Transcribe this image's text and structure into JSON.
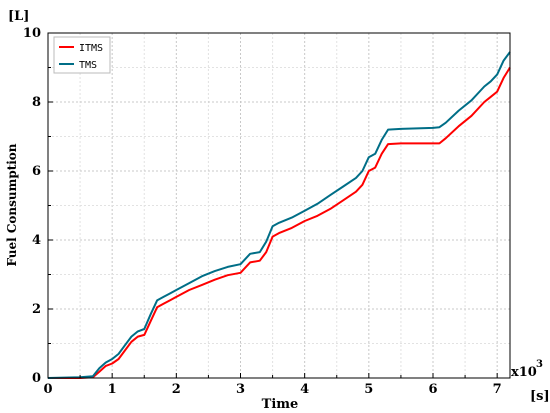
{
  "chart_data": {
    "type": "line",
    "title": "",
    "xlabel": "Time",
    "ylabel": "Fuel Consumption",
    "x_unit": "[s]",
    "y_unit": "[L]",
    "x_multiplier": "x10",
    "x_multiplier_exp": "3",
    "xlim": [
      0,
      7.2
    ],
    "ylim": [
      0,
      10
    ],
    "x_ticks": [
      "0",
      "1",
      "2",
      "3",
      "4",
      "5",
      "6",
      "7"
    ],
    "y_ticks": [
      "0",
      "2",
      "4",
      "6",
      "8",
      "10"
    ],
    "grid": true,
    "legend_position": "top-left",
    "series": [
      {
        "name": "ITMS",
        "color": "#ff0000",
        "points": [
          [
            0,
            0
          ],
          [
            0.5,
            0
          ],
          [
            0.7,
            0.02
          ],
          [
            0.8,
            0.18
          ],
          [
            0.9,
            0.35
          ],
          [
            1.0,
            0.42
          ],
          [
            1.1,
            0.55
          ],
          [
            1.2,
            0.8
          ],
          [
            1.3,
            1.05
          ],
          [
            1.4,
            1.2
          ],
          [
            1.5,
            1.25
          ],
          [
            1.6,
            1.65
          ],
          [
            1.7,
            2.05
          ],
          [
            1.8,
            2.15
          ],
          [
            1.9,
            2.25
          ],
          [
            2.0,
            2.35
          ],
          [
            2.2,
            2.55
          ],
          [
            2.4,
            2.7
          ],
          [
            2.6,
            2.85
          ],
          [
            2.8,
            2.98
          ],
          [
            3.0,
            3.05
          ],
          [
            3.15,
            3.35
          ],
          [
            3.3,
            3.4
          ],
          [
            3.4,
            3.65
          ],
          [
            3.5,
            4.1
          ],
          [
            3.6,
            4.2
          ],
          [
            3.8,
            4.35
          ],
          [
            4.0,
            4.55
          ],
          [
            4.2,
            4.7
          ],
          [
            4.4,
            4.9
          ],
          [
            4.6,
            5.15
          ],
          [
            4.8,
            5.4
          ],
          [
            4.9,
            5.6
          ],
          [
            5.0,
            6.0
          ],
          [
            5.1,
            6.1
          ],
          [
            5.2,
            6.5
          ],
          [
            5.3,
            6.78
          ],
          [
            5.5,
            6.8
          ],
          [
            6.0,
            6.8
          ],
          [
            6.1,
            6.8
          ],
          [
            6.2,
            6.95
          ],
          [
            6.4,
            7.3
          ],
          [
            6.6,
            7.6
          ],
          [
            6.8,
            8.0
          ],
          [
            6.9,
            8.15
          ],
          [
            7.0,
            8.3
          ],
          [
            7.1,
            8.7
          ],
          [
            7.2,
            9.0
          ]
        ]
      },
      {
        "name": "TMS",
        "color": "#006e87",
        "points": [
          [
            0,
            0
          ],
          [
            0.5,
            0.02
          ],
          [
            0.7,
            0.05
          ],
          [
            0.8,
            0.28
          ],
          [
            0.9,
            0.45
          ],
          [
            1.0,
            0.55
          ],
          [
            1.1,
            0.7
          ],
          [
            1.2,
            0.95
          ],
          [
            1.3,
            1.2
          ],
          [
            1.4,
            1.35
          ],
          [
            1.5,
            1.42
          ],
          [
            1.6,
            1.85
          ],
          [
            1.7,
            2.25
          ],
          [
            1.8,
            2.35
          ],
          [
            1.9,
            2.45
          ],
          [
            2.0,
            2.55
          ],
          [
            2.2,
            2.75
          ],
          [
            2.4,
            2.95
          ],
          [
            2.6,
            3.1
          ],
          [
            2.8,
            3.22
          ],
          [
            3.0,
            3.3
          ],
          [
            3.15,
            3.6
          ],
          [
            3.3,
            3.65
          ],
          [
            3.4,
            3.95
          ],
          [
            3.5,
            4.4
          ],
          [
            3.6,
            4.5
          ],
          [
            3.8,
            4.65
          ],
          [
            4.0,
            4.85
          ],
          [
            4.2,
            5.05
          ],
          [
            4.4,
            5.3
          ],
          [
            4.6,
            5.55
          ],
          [
            4.8,
            5.8
          ],
          [
            4.9,
            6.0
          ],
          [
            5.0,
            6.4
          ],
          [
            5.1,
            6.5
          ],
          [
            5.2,
            6.9
          ],
          [
            5.3,
            7.2
          ],
          [
            5.5,
            7.22
          ],
          [
            6.0,
            7.25
          ],
          [
            6.1,
            7.27
          ],
          [
            6.2,
            7.4
          ],
          [
            6.4,
            7.75
          ],
          [
            6.6,
            8.05
          ],
          [
            6.8,
            8.45
          ],
          [
            6.9,
            8.6
          ],
          [
            7.0,
            8.8
          ],
          [
            7.1,
            9.2
          ],
          [
            7.2,
            9.45
          ]
        ]
      }
    ]
  }
}
